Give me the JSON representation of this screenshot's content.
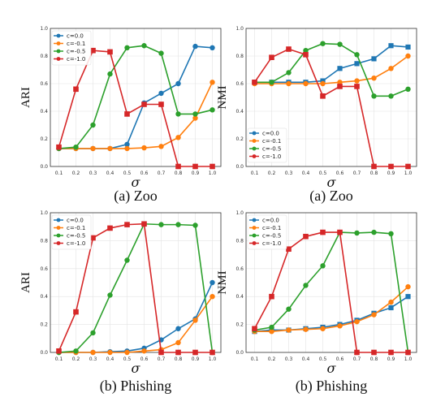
{
  "series_colors": [
    "#1f77b4",
    "#ff7f0e",
    "#2ca02c",
    "#d62728"
  ],
  "chart_data": [
    {
      "type": "line",
      "ylabel": "ARI",
      "xlabel": "σ",
      "caption": "(a) Zoo",
      "xlim": [
        0.05,
        1.05
      ],
      "ylim": [
        0,
        1.0
      ],
      "x": [
        0.1,
        0.2,
        0.3,
        0.4,
        0.5,
        0.6,
        0.7,
        0.8,
        0.9,
        1.0
      ],
      "xticks": [
        "0.1",
        "0.2",
        "0.3",
        "0.4",
        "0.5",
        "0.6",
        "0.7",
        "0.8",
        "0.9",
        "1.0"
      ],
      "yticks": [
        "0.0",
        "0.2",
        "0.4",
        "0.6",
        "0.8",
        "1.0"
      ],
      "legend_position": "top-left",
      "series": [
        {
          "name": "c=0.0",
          "values": [
            0.13,
            0.13,
            0.13,
            0.13,
            0.16,
            0.46,
            0.53,
            0.6,
            0.87,
            0.86
          ]
        },
        {
          "name": "c=-0.1",
          "values": [
            0.13,
            0.13,
            0.13,
            0.13,
            0.13,
            0.135,
            0.145,
            0.21,
            0.35,
            0.61
          ]
        },
        {
          "name": "c=-0.5",
          "values": [
            0.13,
            0.14,
            0.3,
            0.67,
            0.86,
            0.875,
            0.82,
            0.38,
            0.38,
            0.41
          ]
        },
        {
          "name": "c=-1.0",
          "values": [
            0.14,
            0.56,
            0.84,
            0.83,
            0.38,
            0.45,
            0.45,
            0.0,
            0.0,
            0.0
          ]
        }
      ]
    },
    {
      "type": "line",
      "ylabel": "NMI",
      "xlabel": "σ",
      "caption": "(a) Zoo",
      "xlim": [
        0.05,
        1.05
      ],
      "ylim": [
        0,
        1.0
      ],
      "x": [
        0.1,
        0.2,
        0.3,
        0.4,
        0.5,
        0.6,
        0.7,
        0.8,
        0.9,
        1.0
      ],
      "xticks": [
        "0.1",
        "0.2",
        "0.3",
        "0.4",
        "0.5",
        "0.6",
        "0.7",
        "0.8",
        "0.9",
        "1.0"
      ],
      "yticks": [
        "0.0",
        "0.2",
        "0.4",
        "0.6",
        "0.8",
        "1.0"
      ],
      "legend_position": "bottom-left",
      "series": [
        {
          "name": "c=0.0",
          "values": [
            0.61,
            0.61,
            0.61,
            0.61,
            0.62,
            0.71,
            0.745,
            0.78,
            0.875,
            0.865
          ]
        },
        {
          "name": "c=-0.1",
          "values": [
            0.6,
            0.6,
            0.6,
            0.6,
            0.6,
            0.61,
            0.62,
            0.64,
            0.71,
            0.8
          ]
        },
        {
          "name": "c=-0.5",
          "values": [
            0.61,
            0.61,
            0.68,
            0.84,
            0.89,
            0.885,
            0.81,
            0.51,
            0.51,
            0.56
          ]
        },
        {
          "name": "c=-1.0",
          "values": [
            0.61,
            0.79,
            0.85,
            0.81,
            0.51,
            0.58,
            0.58,
            0.0,
            0.0,
            0.0
          ]
        }
      ]
    },
    {
      "type": "line",
      "ylabel": "ARI",
      "xlabel": "σ",
      "caption": "(b) Phishing",
      "xlim": [
        0.05,
        1.05
      ],
      "ylim": [
        0,
        1.0
      ],
      "x": [
        0.1,
        0.2,
        0.3,
        0.4,
        0.5,
        0.6,
        0.7,
        0.8,
        0.9,
        1.0
      ],
      "xticks": [
        "0.1",
        "0.2",
        "0.3",
        "0.4",
        "0.5",
        "0.6",
        "0.7",
        "0.8",
        "0.9",
        "1.0"
      ],
      "yticks": [
        "0.0",
        "0.2",
        "0.4",
        "0.6",
        "0.8",
        "1.0"
      ],
      "legend_position": "top-left",
      "series": [
        {
          "name": "c=0.0",
          "values": [
            0.0,
            0.0,
            0.0,
            0.005,
            0.01,
            0.03,
            0.09,
            0.17,
            0.24,
            0.5
          ]
        },
        {
          "name": "c=-0.1",
          "values": [
            0.0,
            0.0,
            0.0,
            0.0,
            0.0,
            0.01,
            0.02,
            0.07,
            0.23,
            0.4
          ]
        },
        {
          "name": "c=-0.5",
          "values": [
            0.0,
            0.01,
            0.14,
            0.41,
            0.66,
            0.92,
            0.915,
            0.915,
            0.91,
            0.0
          ]
        },
        {
          "name": "c=-1.0",
          "values": [
            0.01,
            0.29,
            0.82,
            0.89,
            0.915,
            0.92,
            0.0,
            0.0,
            0.0,
            0.0
          ]
        }
      ]
    },
    {
      "type": "line",
      "ylabel": "NMI",
      "xlabel": "σ",
      "caption": "(b) Phishing",
      "xlim": [
        0.05,
        1.05
      ],
      "ylim": [
        0,
        1.0
      ],
      "x": [
        0.1,
        0.2,
        0.3,
        0.4,
        0.5,
        0.6,
        0.7,
        0.8,
        0.9,
        1.0
      ],
      "xticks": [
        "0.1",
        "0.2",
        "0.3",
        "0.4",
        "0.5",
        "0.6",
        "0.7",
        "0.8",
        "0.9",
        "1.0"
      ],
      "yticks": [
        "0.0",
        "0.2",
        "0.4",
        "0.6",
        "0.8",
        "1.0"
      ],
      "legend_position": "top-left",
      "series": [
        {
          "name": "c=0.0",
          "values": [
            0.15,
            0.16,
            0.16,
            0.17,
            0.18,
            0.2,
            0.23,
            0.28,
            0.32,
            0.4
          ]
        },
        {
          "name": "c=-0.1",
          "values": [
            0.15,
            0.15,
            0.16,
            0.165,
            0.17,
            0.19,
            0.22,
            0.27,
            0.36,
            0.47
          ]
        },
        {
          "name": "c=-0.5",
          "values": [
            0.16,
            0.18,
            0.31,
            0.48,
            0.62,
            0.86,
            0.855,
            0.86,
            0.85,
            0.0
          ]
        },
        {
          "name": "c=-1.0",
          "values": [
            0.17,
            0.4,
            0.74,
            0.83,
            0.86,
            0.86,
            0.0,
            0.0,
            0.0,
            0.0
          ]
        }
      ]
    }
  ]
}
